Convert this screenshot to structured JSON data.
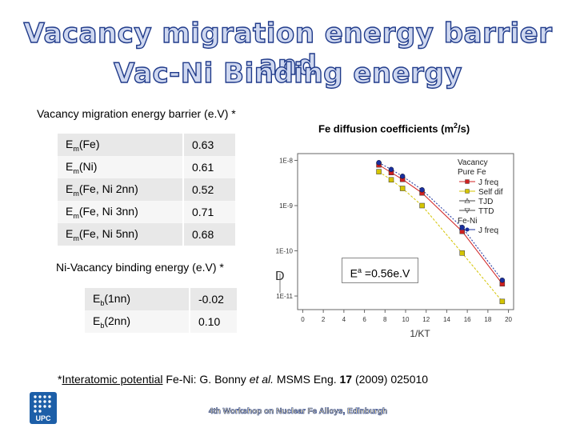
{
  "title": {
    "line1": "Vacancy migration energy barrier and",
    "line2": "Vac-Ni Binding energy"
  },
  "migration": {
    "heading": "Vacancy migration energy barrier (e.V) *",
    "rows": [
      {
        "sym": "E",
        "sub": "m",
        "arg": "(Fe)",
        "value": "0.63"
      },
      {
        "sym": "E",
        "sub": "m",
        "arg": "(Ni)",
        "value": "0.61"
      },
      {
        "sym": "E",
        "sub": "m",
        "arg": "(Fe, Ni 2nn)",
        "value": "0.52"
      },
      {
        "sym": "E",
        "sub": "m",
        "arg": "(Fe, Ni 3nn)",
        "value": "0.71"
      },
      {
        "sym": "E",
        "sub": "m",
        "arg": "(Fe, Ni 5nn)",
        "value": "0.68"
      }
    ]
  },
  "binding": {
    "heading": "Ni-Vacancy binding energy (e.V) *",
    "rows": [
      {
        "sym": "E",
        "sub": "b",
        "arg": "(1nn)",
        "value": "-0.02"
      },
      {
        "sym": "E",
        "sub": "b",
        "arg": "(2nn)",
        "value": "0.10"
      }
    ]
  },
  "plot_heading": {
    "text": "Fe diffusion coefficients  (m",
    "sup": "2",
    "end": "/s)"
  },
  "activation": {
    "sym": "E",
    "sup": "a",
    "text": " =0.56e.V"
  },
  "footnote": {
    "star": "*",
    "link": "Interatomic potential",
    "authors": "  Fe-Ni: G. Bonny ",
    "etal": "et al.",
    "journal": " MSMS Eng. ",
    "vol": "17",
    "rest": " (2009) 025010"
  },
  "conference": "4th Workshop on Nuclear Fe Alloys, Edinburgh",
  "logo_text": "UPC",
  "chart_data": {
    "type": "scatter",
    "title": "",
    "xlabel": "1/KT",
    "ylabel": "D",
    "xlim": [
      -0.5,
      20.5
    ],
    "x_ticks": [
      "0",
      "2",
      "4",
      "6",
      "8",
      "10",
      "12",
      "14",
      "16",
      "18",
      "20"
    ],
    "y_ticks": [
      "1E-8",
      "1E-9",
      "1E-10",
      "1E-11"
    ],
    "ylim_log10": [
      -11.3,
      -7.85
    ],
    "legend": {
      "placement": "top-right",
      "group1_title": "Vacancy",
      "group1_sub": "Pure Fe",
      "group2_title": "Fe-Ni",
      "entries": [
        "J freq",
        "Self dif",
        "TJD",
        "TTD",
        "J freq"
      ]
    },
    "series": [
      {
        "name": "J freq (Pure Fe)",
        "color": "#d02020",
        "marker": "square",
        "x": [
          7.4,
          8.6,
          9.7,
          11.6,
          15.5,
          19.4
        ],
        "log10_y": [
          -8.1,
          -8.27,
          -8.42,
          -8.72,
          -9.57,
          -10.73
        ]
      },
      {
        "name": "Self dif",
        "color": "#d4c400",
        "marker": "square",
        "x": [
          7.4,
          8.6,
          9.7,
          11.6,
          15.5,
          19.4
        ],
        "log10_y": [
          -8.25,
          -8.43,
          -8.62,
          -9.0,
          -10.05,
          -11.12
        ]
      },
      {
        "name": "J freq (Fe-Ni)",
        "color": "#1a2f9e",
        "marker": "circle",
        "x": [
          7.4,
          8.6,
          9.7,
          11.6,
          15.5,
          19.4
        ],
        "log10_y": [
          -8.05,
          -8.2,
          -8.35,
          -8.65,
          -9.48,
          -10.65
        ]
      }
    ]
  }
}
